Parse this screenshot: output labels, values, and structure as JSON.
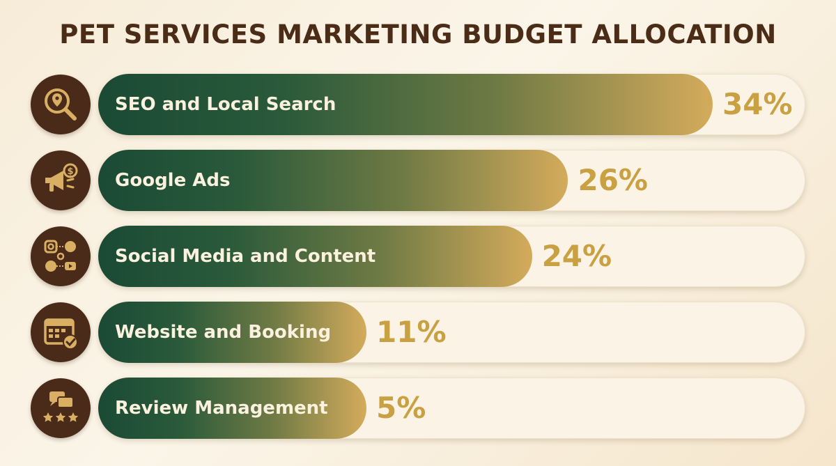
{
  "title": "PET SERVICES MARKETING BUDGET ALLOCATION",
  "colors": {
    "background": "#f7ecd8",
    "title": "#4a2c17",
    "icon_circle": "#4a2b19",
    "bar_start": "#1b4a35",
    "bar_end": "#d4ab5c",
    "percent_text": "#c9a042",
    "track": "#fbf4e6"
  },
  "rows": [
    {
      "label": "SEO and Local Search",
      "percent": "34%",
      "icon": "location-search-icon"
    },
    {
      "label": "Google Ads",
      "percent": "26%",
      "icon": "megaphone-dollar-icon"
    },
    {
      "label": "Social Media and Content",
      "percent": "24%",
      "icon": "social-media-icon"
    },
    {
      "label": "Website and Booking",
      "percent": "11%",
      "icon": "calendar-check-icon"
    },
    {
      "label": "Review Management",
      "percent": "5%",
      "icon": "review-stars-icon"
    }
  ],
  "chart_data": {
    "type": "bar",
    "orientation": "horizontal",
    "title": "PET SERVICES MARKETING BUDGET ALLOCATION",
    "categories": [
      "SEO and Local Search",
      "Google Ads",
      "Social Media and Content",
      "Website and Booking",
      "Review Management"
    ],
    "values": [
      34,
      26,
      24,
      11,
      5
    ],
    "unit": "%",
    "xlim": [
      0,
      40
    ],
    "grid": false,
    "legend": "none"
  }
}
